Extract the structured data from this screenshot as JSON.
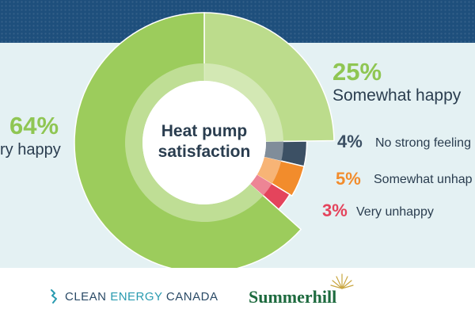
{
  "chart_data": {
    "type": "pie",
    "title": "Heat pump satisfaction",
    "title_lines": [
      "Heat pump",
      "satisfaction"
    ],
    "slices": [
      {
        "label": "Very happy",
        "value": 64,
        "value_text": "64%",
        "visible_label": "ry happy",
        "color": "#9ccc5c"
      },
      {
        "label": "Somewhat happy",
        "value": 25,
        "value_text": "25%",
        "visible_label": "Somewhat happy",
        "color": "#bcdc8c"
      },
      {
        "label": "No strong feeling",
        "value": 4,
        "value_text": "4%",
        "visible_label": "No strong feeling",
        "color": "#3c5064"
      },
      {
        "label": "Somewhat unhappy",
        "value": 5,
        "value_text": "5%",
        "visible_label": "Somewhat unhap",
        "color": "#f28c2c"
      },
      {
        "label": "Very unhappy",
        "value": 3,
        "value_text": "3%",
        "visible_label": "Very unhappy",
        "color": "#e4445c"
      }
    ]
  },
  "logos": {
    "clean_energy": {
      "prefix": "CLEAN ",
      "accent": "ENERGY",
      "suffix": " CANADA"
    },
    "summerhill": "Summerhill"
  }
}
